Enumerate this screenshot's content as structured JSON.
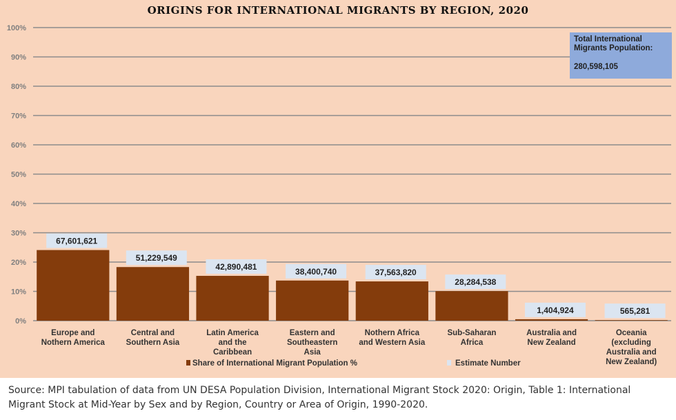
{
  "chart_data": {
    "type": "bar",
    "title": "ORIGINS FOR INTERNATIONAL MIGRANTS BY REGION, 2020",
    "categories": [
      "Europe and Nothern America",
      "Central and Southern Asia",
      "Latin America and the Caribbean",
      "Eastern and Southeastern Asia",
      "Nothern Africa and Western Asia",
      "Sub-Saharan Africa",
      "Australia and New Zealand",
      "Oceania (excluding Australia and New Zealand)"
    ],
    "series": [
      {
        "name": "Share of International Migrant Population %",
        "values": [
          24.1,
          18.3,
          15.3,
          13.7,
          13.4,
          10.1,
          0.5,
          0.2
        ],
        "color": "#843c0c"
      },
      {
        "name": "Estimate Number",
        "values": [
          67601621,
          51229549,
          42890481,
          38400740,
          37563820,
          28284538,
          1404924,
          565281
        ],
        "color": "#dbe5f1"
      }
    ],
    "data_labels": [
      "67,601,621",
      "51,229,549",
      "42,890,481",
      "38,400,740",
      "37,563,820",
      "28,284,538",
      "1,404,924",
      "565,281"
    ],
    "y_ticks": [
      "0%",
      "10%",
      "20%",
      "30%",
      "40%",
      "50%",
      "60%",
      "70%",
      "80%",
      "90%",
      "100%"
    ],
    "ylim": [
      0,
      100
    ],
    "grid": true,
    "legend": "bottom",
    "annotation": {
      "label": "Total International Migrants Population:",
      "value": "280,598,105",
      "color": "#8eaadb"
    },
    "background": "#f9d5bd"
  },
  "source": "Source: MPI tabulation of data from UN DESA Population Division, International Migrant Stock 2020: Origin, Table 1: International Migrant Stock at Mid-Year by Sex and by Region, Country or Area of Origin, 1990-2020."
}
